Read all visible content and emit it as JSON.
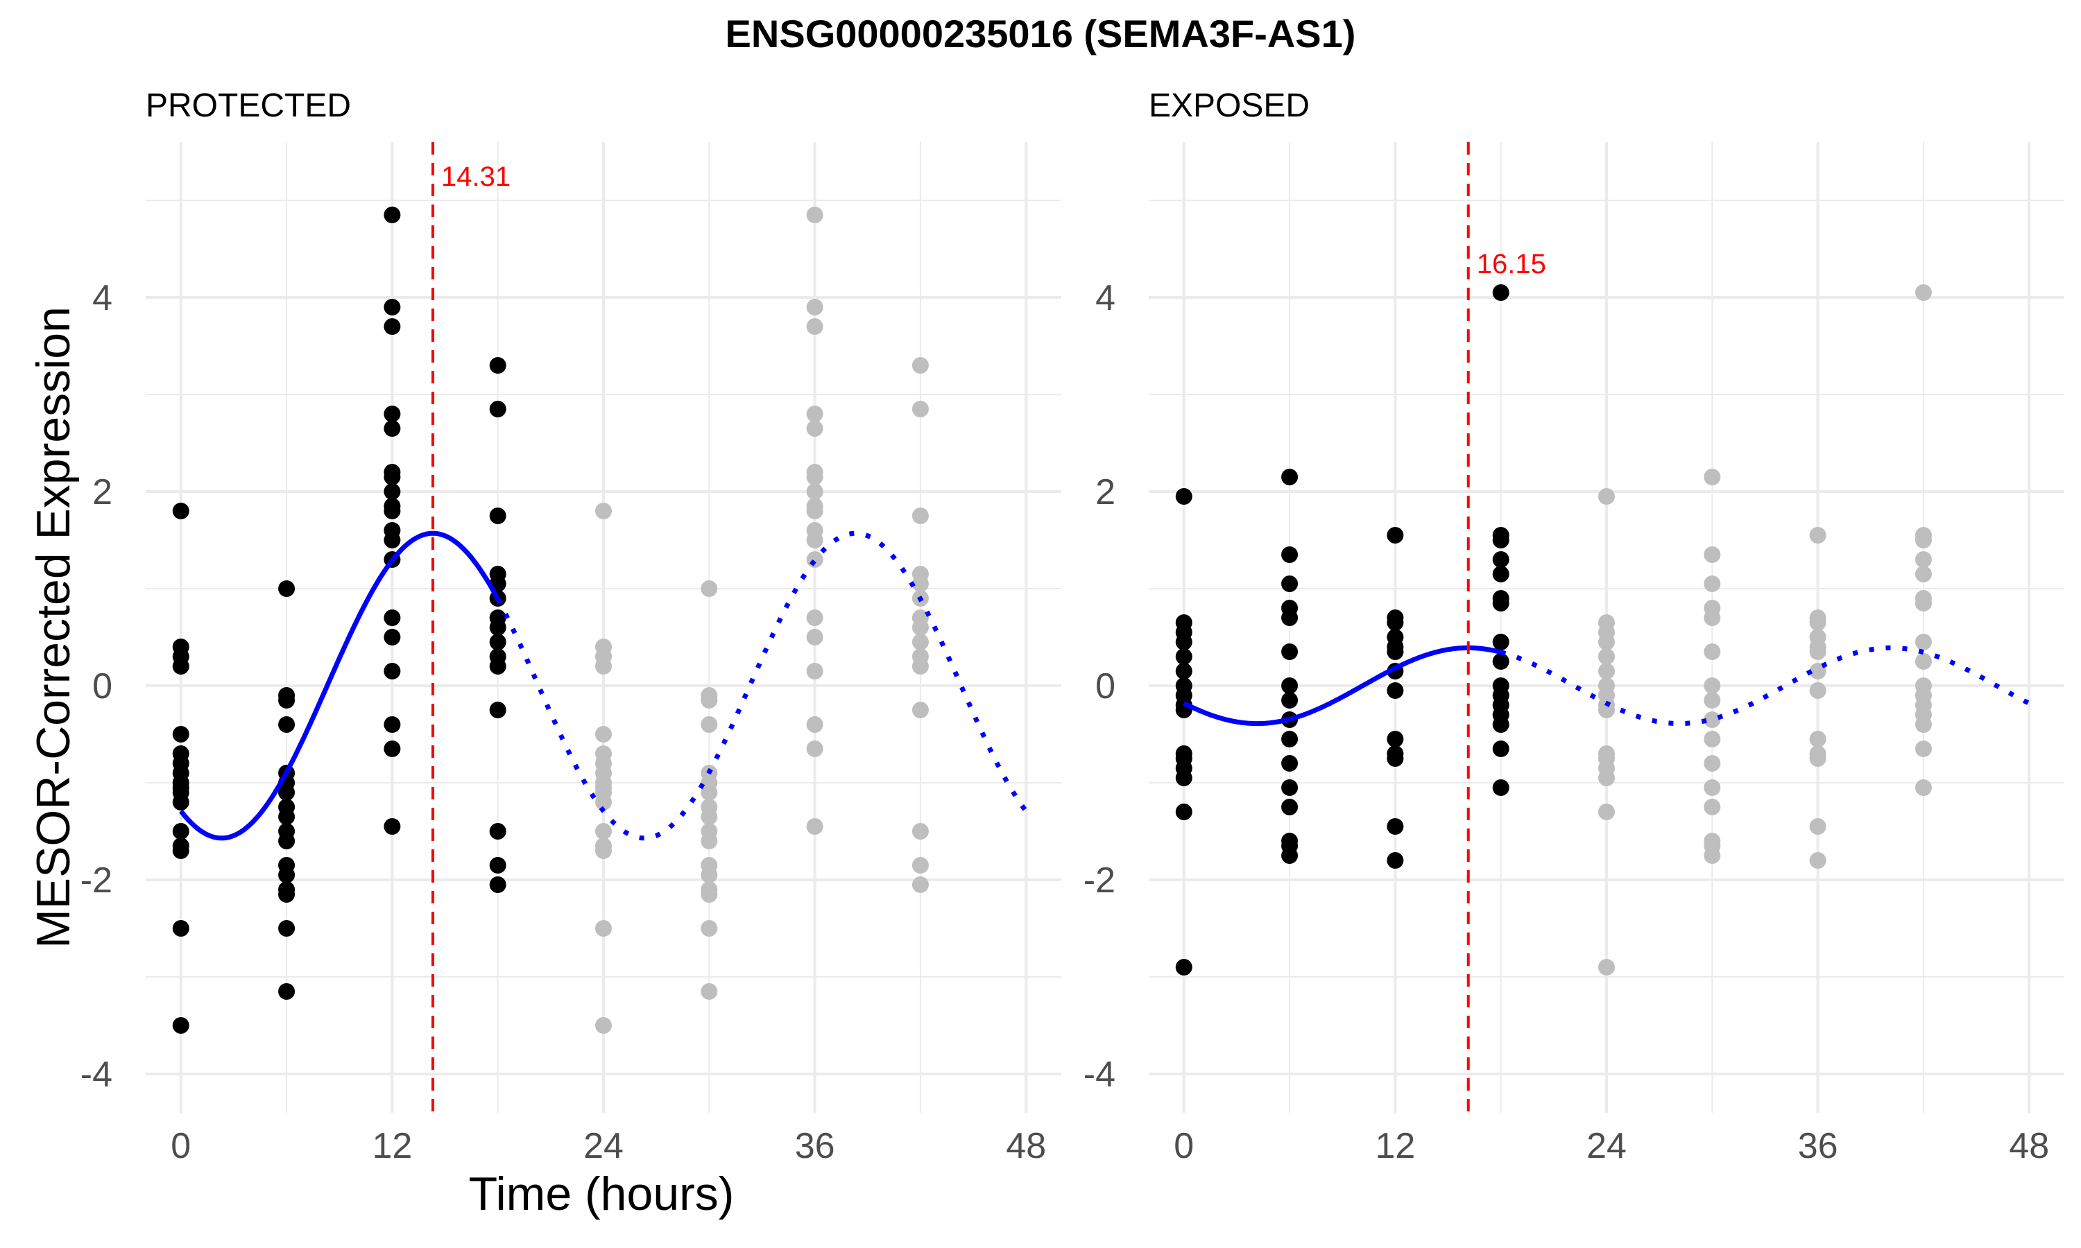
{
  "chart_data": {
    "title": "ENSG00000235016 (SEMA3F-AS1)",
    "type": "scatter",
    "xlabel": "Time (hours)",
    "ylabel": "MESOR-Corrected Expression",
    "xlim": [
      -2,
      50
    ],
    "ylim": [
      -4.4,
      5.6
    ],
    "xticks": [
      0,
      12,
      24,
      36,
      48
    ],
    "yticks": [
      -4,
      -2,
      0,
      2,
      4
    ],
    "grid": true,
    "colors": {
      "observed": "#000000",
      "replicated": "#bebebe",
      "fit": "#0000ff",
      "peak": "#ff0000",
      "grid": "#ebebeb"
    },
    "panels": [
      {
        "name": "PROTECTED",
        "peak_time": 14.31,
        "peak_label": "14.31",
        "fit": {
          "mesor": 0.0,
          "amplitude": 1.57,
          "acrophase": 14.31,
          "period": 24,
          "x_solid": [
            0,
            18
          ],
          "x_dotted": [
            18,
            48
          ]
        },
        "points": [
          {
            "x": 0,
            "y": [
              1.8,
              0.4,
              0.3,
              0.2,
              -0.5,
              -0.7,
              -0.8,
              -0.9,
              -1.0,
              -1.05,
              -1.1,
              -1.2,
              -1.5,
              -1.65,
              -1.7,
              -2.5,
              -3.5
            ]
          },
          {
            "x": 6,
            "y": [
              1.0,
              -0.1,
              -0.15,
              -0.4,
              -0.9,
              -1.0,
              -1.1,
              -1.25,
              -1.35,
              -1.5,
              -1.6,
              -1.85,
              -1.95,
              -2.1,
              -2.15,
              -2.5,
              -3.15
            ]
          },
          {
            "x": 12,
            "y": [
              4.85,
              3.9,
              3.7,
              2.8,
              2.65,
              2.2,
              2.15,
              2.0,
              1.85,
              1.8,
              1.6,
              1.5,
              1.3,
              0.7,
              0.5,
              0.15,
              -0.4,
              -0.65,
              -1.45
            ]
          },
          {
            "x": 18,
            "y": [
              3.3,
              2.85,
              1.75,
              1.15,
              1.05,
              0.9,
              0.7,
              0.6,
              0.45,
              0.3,
              0.2,
              -0.25,
              -1.5,
              -1.85,
              -2.05
            ]
          }
        ]
      },
      {
        "name": "EXPOSED",
        "peak_time": 16.15,
        "peak_label": "16.15",
        "fit": {
          "mesor": 0.0,
          "amplitude": 0.39,
          "acrophase": 16.15,
          "period": 24,
          "x_solid": [
            0,
            18
          ],
          "x_dotted": [
            18,
            48
          ]
        },
        "points": [
          {
            "x": 0,
            "y": [
              1.95,
              0.65,
              0.55,
              0.45,
              0.3,
              0.15,
              0.0,
              -0.1,
              -0.2,
              -0.25,
              -0.7,
              -0.75,
              -0.85,
              -0.95,
              -1.3,
              -2.9
            ]
          },
          {
            "x": 6,
            "y": [
              2.15,
              1.35,
              1.05,
              0.8,
              0.7,
              0.35,
              0.0,
              -0.15,
              -0.35,
              -0.55,
              -0.8,
              -1.05,
              -1.25,
              -1.6,
              -1.65,
              -1.75
            ]
          },
          {
            "x": 12,
            "y": [
              1.55,
              0.7,
              0.65,
              0.5,
              0.4,
              0.35,
              0.15,
              -0.05,
              -0.55,
              -0.7,
              -0.75,
              -1.45,
              -1.8
            ]
          },
          {
            "x": 18,
            "y": [
              4.05,
              1.55,
              1.5,
              1.3,
              1.15,
              0.9,
              0.85,
              0.45,
              0.25,
              0.0,
              -0.1,
              -0.2,
              -0.3,
              -0.4,
              -0.65,
              -1.05
            ]
          }
        ]
      }
    ]
  }
}
